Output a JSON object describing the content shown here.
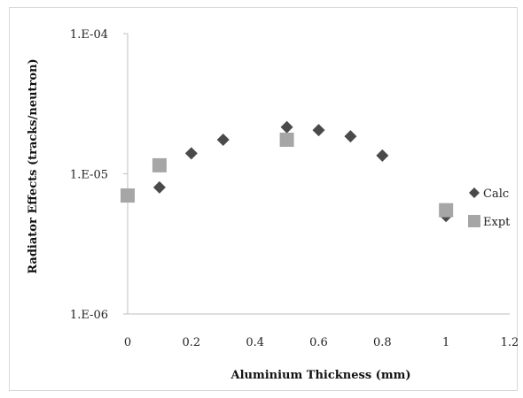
{
  "chart_data": {
    "type": "scatter",
    "xlabel": "Aluminium Thickness (mm)",
    "ylabel": "Radiator Effects (tracks/neutron)",
    "xlim": [
      0,
      1.2
    ],
    "ylim": [
      1e-06,
      0.0001
    ],
    "yscale": "log",
    "x_ticks": [
      "0",
      "0.2",
      "0.4",
      "0.6",
      "0.8",
      "1",
      "1.2"
    ],
    "y_ticks": [
      "1.E-06",
      "1.E-05",
      "1.E-04"
    ],
    "legend_placement": "right",
    "series": [
      {
        "name": "Calc",
        "marker": "diamond",
        "color": "#4a4a4a",
        "points": [
          {
            "x": 0,
            "y": 7e-06
          },
          {
            "x": 0.1,
            "y": 8e-06
          },
          {
            "x": 0.2,
            "y": 1.4e-05
          },
          {
            "x": 0.3,
            "y": 1.75e-05
          },
          {
            "x": 0.5,
            "y": 2.15e-05
          },
          {
            "x": 0.6,
            "y": 2.05e-05
          },
          {
            "x": 0.7,
            "y": 1.85e-05
          },
          {
            "x": 0.8,
            "y": 1.35e-05
          },
          {
            "x": 1.0,
            "y": 5e-06
          }
        ]
      },
      {
        "name": "Expt",
        "marker": "square",
        "color": "#a6a6a6",
        "points": [
          {
            "x": 0,
            "y": 7e-06
          },
          {
            "x": 0.1,
            "y": 1.15e-05
          },
          {
            "x": 0.5,
            "y": 1.75e-05
          },
          {
            "x": 1.0,
            "y": 5.5e-06
          }
        ]
      }
    ]
  }
}
